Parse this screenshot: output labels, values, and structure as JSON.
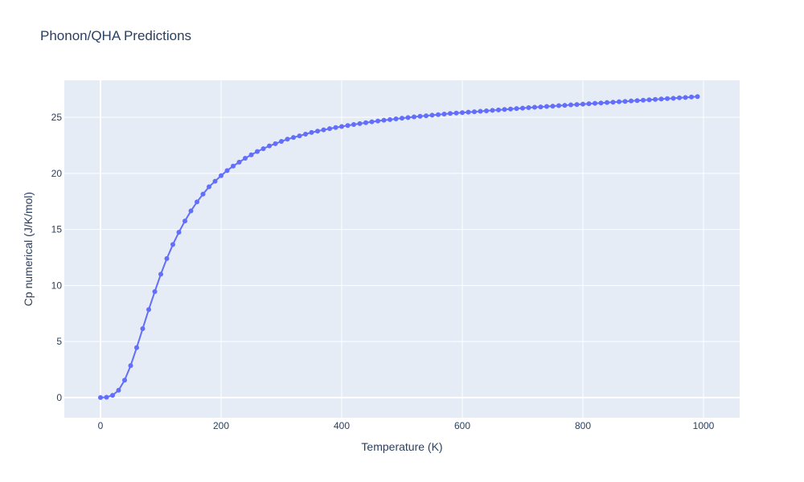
{
  "chart_data": {
    "type": "line",
    "title": "Phonon/QHA Predictions",
    "xlabel": "Temperature (K)",
    "ylabel": "Cp numerical (J/K/mol)",
    "xlim": [
      -60,
      1060
    ],
    "ylim": [
      -1.8,
      28.3
    ],
    "xticks": [
      0,
      200,
      400,
      600,
      800,
      1000
    ],
    "yticks": [
      0,
      5,
      10,
      15,
      20,
      25
    ],
    "grid": true,
    "legend": "none",
    "colors": {
      "series": "#636efa",
      "plot_bg": "#e5ecf6",
      "grid": "#ffffff",
      "text": "#2a3f5f"
    },
    "series": [
      {
        "x": [
          0,
          10,
          20,
          30,
          40,
          50,
          60,
          70,
          80,
          90,
          100,
          110,
          120,
          130,
          140,
          150,
          160,
          170,
          180,
          190,
          200,
          210,
          220,
          230,
          240,
          250,
          260,
          270,
          280,
          290,
          300,
          310,
          320,
          330,
          340,
          350,
          360,
          370,
          380,
          390,
          400,
          410,
          420,
          430,
          440,
          450,
          460,
          470,
          480,
          490,
          500,
          510,
          520,
          530,
          540,
          550,
          560,
          570,
          580,
          590,
          600,
          610,
          620,
          630,
          640,
          650,
          660,
          670,
          680,
          690,
          700,
          710,
          720,
          730,
          740,
          750,
          760,
          770,
          780,
          790,
          800,
          810,
          820,
          830,
          840,
          850,
          860,
          870,
          880,
          890,
          900,
          910,
          920,
          930,
          940,
          950,
          960,
          970,
          980,
          990
        ],
        "y": [
          0,
          0.03,
          0.2,
          0.65,
          1.55,
          2.85,
          4.45,
          6.15,
          7.85,
          9.45,
          11.0,
          12.4,
          13.65,
          14.75,
          15.75,
          16.65,
          17.45,
          18.15,
          18.8,
          19.3,
          19.8,
          20.25,
          20.65,
          21.0,
          21.35,
          21.65,
          21.95,
          22.2,
          22.45,
          22.65,
          22.85,
          23.05,
          23.2,
          23.35,
          23.5,
          23.65,
          23.77,
          23.88,
          23.99,
          24.09,
          24.18,
          24.27,
          24.36,
          24.44,
          24.52,
          24.6,
          24.67,
          24.74,
          24.8,
          24.86,
          24.92,
          24.98,
          25.04,
          25.09,
          25.14,
          25.19,
          25.24,
          25.29,
          25.34,
          25.38,
          25.42,
          25.46,
          25.5,
          25.54,
          25.58,
          25.62,
          25.66,
          25.7,
          25.74,
          25.78,
          25.82,
          25.86,
          25.9,
          25.93,
          25.97,
          26.0,
          26.04,
          26.07,
          26.11,
          26.14,
          26.18,
          26.21,
          26.25,
          26.28,
          26.32,
          26.35,
          26.39,
          26.42,
          26.46,
          26.49,
          26.53,
          26.56,
          26.6,
          26.63,
          26.67,
          26.7,
          26.74,
          26.77,
          26.81,
          26.85
        ]
      }
    ]
  }
}
